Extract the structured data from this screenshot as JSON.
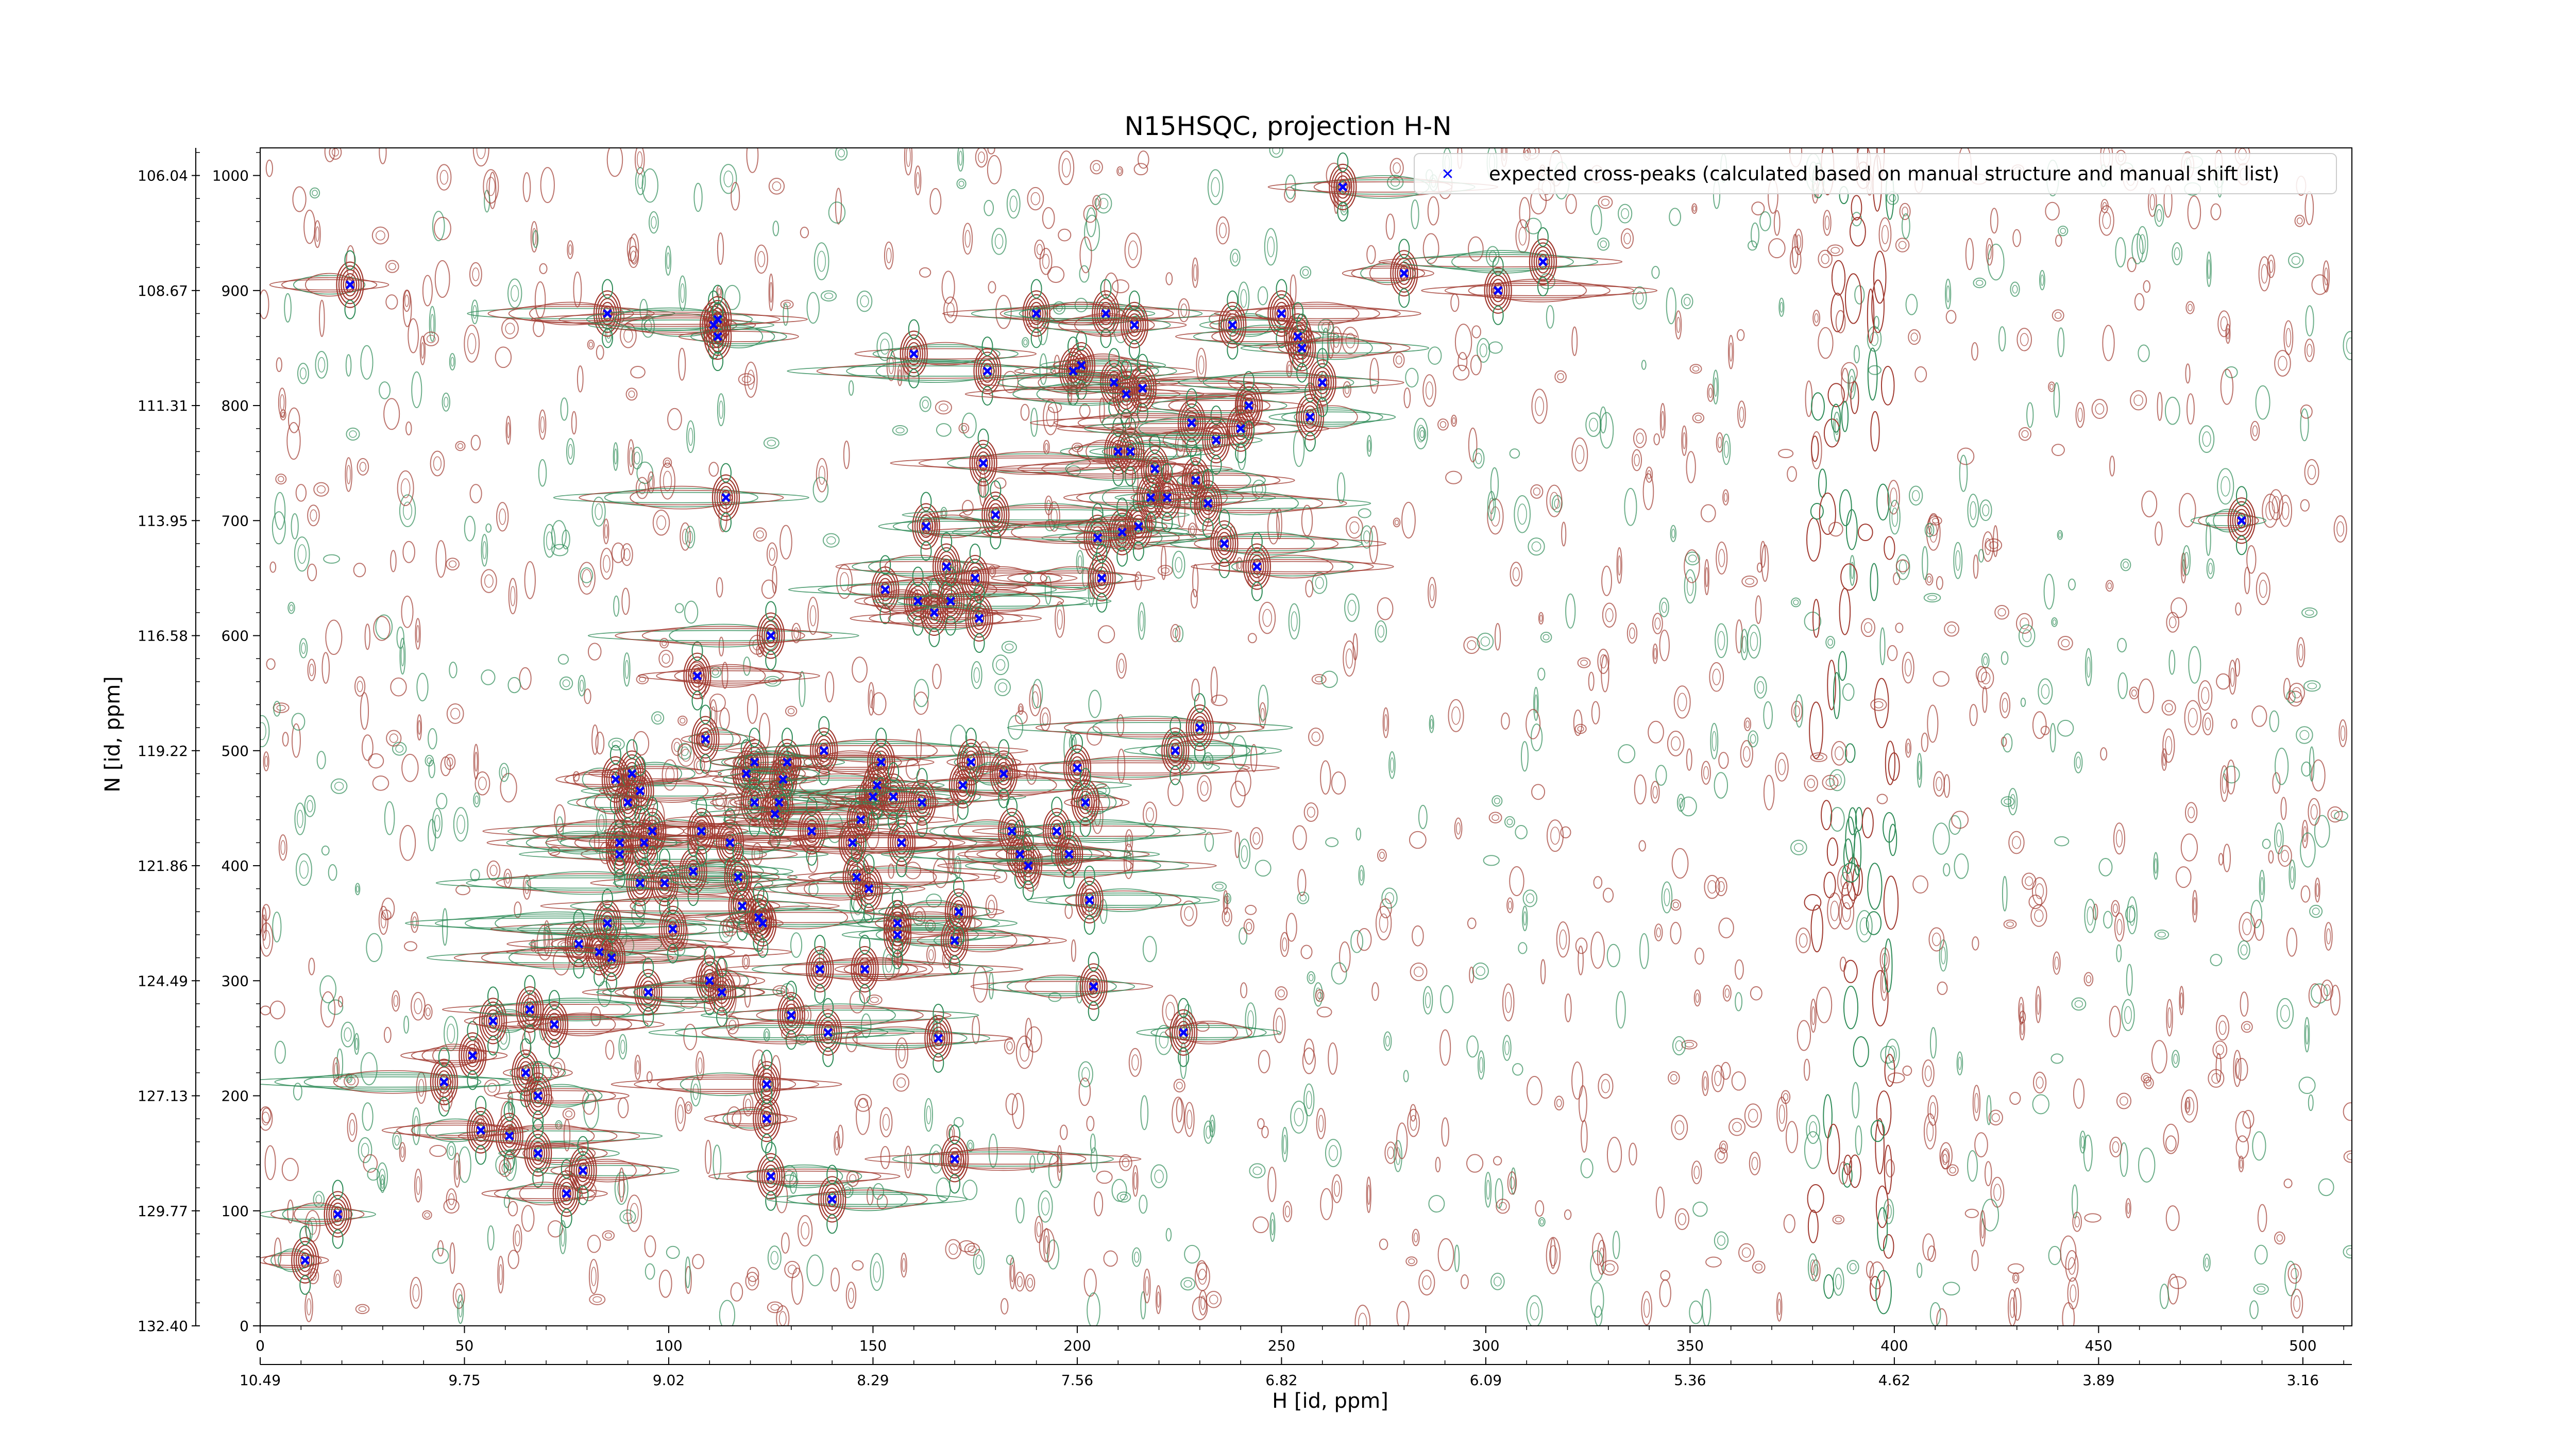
{
  "chart_data": {
    "type": "scatter",
    "title": "N15HSQC, projection H-N",
    "xlabel_bottom": "",
    "xlabel_top": "H [id, ppm]",
    "ylabel": "N [id, ppm]",
    "x_index_ticks": [
      "0",
      "50",
      "100",
      "150",
      "200",
      "250",
      "300",
      "350",
      "400",
      "450",
      "500"
    ],
    "x_ppm_ticks": [
      "10.49",
      "9.75",
      "9.02",
      "8.29",
      "7.56",
      "6.82",
      "6.09",
      "5.36",
      "4.62",
      "3.89",
      "3.16"
    ],
    "y_index_ticks": [
      "0",
      "100",
      "200",
      "300",
      "400",
      "500",
      "600",
      "700",
      "800",
      "900",
      "1000"
    ],
    "y_ppm_ticks": [
      "132.40",
      "129.77",
      "127.13",
      "124.49",
      "121.86",
      "119.22",
      "116.58",
      "113.95",
      "111.31",
      "108.67",
      "106.04"
    ],
    "xlim": [
      0,
      512
    ],
    "ylim": [
      0,
      1024
    ],
    "grid": false,
    "legend_position": "top-right",
    "contour_colors": {
      "positive": "#a0392f",
      "negative": "#2e8b57"
    },
    "series": [
      {
        "name": "expected cross-peaks (calculated based on manual structure and manual shift list)",
        "color": "#0000ff",
        "marker": "x",
        "points": [
          [
            11,
            57
          ],
          [
            19,
            97
          ],
          [
            22,
            905
          ],
          [
            52,
            235
          ],
          [
            45,
            212
          ],
          [
            54,
            170
          ],
          [
            57,
            265
          ],
          [
            61,
            165
          ],
          [
            65,
            220
          ],
          [
            66,
            275
          ],
          [
            68,
            200
          ],
          [
            68,
            150
          ],
          [
            72,
            262
          ],
          [
            75,
            115
          ],
          [
            78,
            332
          ],
          [
            79,
            135
          ],
          [
            83,
            325
          ],
          [
            85,
            880
          ],
          [
            85,
            350
          ],
          [
            86,
            320
          ],
          [
            87,
            475
          ],
          [
            88,
            410
          ],
          [
            88,
            420
          ],
          [
            90,
            455
          ],
          [
            91,
            480
          ],
          [
            93,
            465
          ],
          [
            93,
            385
          ],
          [
            94,
            420
          ],
          [
            95,
            290
          ],
          [
            96,
            430
          ],
          [
            99,
            385
          ],
          [
            101,
            345
          ],
          [
            106,
            395
          ],
          [
            107,
            565
          ],
          [
            108,
            430
          ],
          [
            109,
            510
          ],
          [
            110,
            300
          ],
          [
            111,
            870
          ],
          [
            112,
            875
          ],
          [
            112,
            860
          ],
          [
            113,
            290
          ],
          [
            114,
            720
          ],
          [
            115,
            420
          ],
          [
            117,
            390
          ],
          [
            118,
            365
          ],
          [
            119,
            480
          ],
          [
            121,
            490
          ],
          [
            121,
            455
          ],
          [
            122,
            355
          ],
          [
            123,
            350
          ],
          [
            124,
            210
          ],
          [
            124,
            180
          ],
          [
            125,
            130
          ],
          [
            125,
            600
          ],
          [
            126,
            445
          ],
          [
            127,
            455
          ],
          [
            128,
            475
          ],
          [
            129,
            490
          ],
          [
            130,
            270
          ],
          [
            135,
            430
          ],
          [
            137,
            310
          ],
          [
            138,
            500
          ],
          [
            139,
            255
          ],
          [
            140,
            110
          ],
          [
            145,
            420
          ],
          [
            146,
            390
          ],
          [
            147,
            440
          ],
          [
            148,
            310
          ],
          [
            149,
            380
          ],
          [
            150,
            460
          ],
          [
            151,
            470
          ],
          [
            152,
            490
          ],
          [
            153,
            640
          ],
          [
            155,
            460
          ],
          [
            156,
            340
          ],
          [
            156,
            350
          ],
          [
            157,
            420
          ],
          [
            160,
            845
          ],
          [
            161,
            630
          ],
          [
            162,
            455
          ],
          [
            163,
            695
          ],
          [
            165,
            620
          ],
          [
            166,
            250
          ],
          [
            168,
            660
          ],
          [
            169,
            630
          ],
          [
            170,
            335
          ],
          [
            170,
            145
          ],
          [
            171,
            360
          ],
          [
            172,
            470
          ],
          [
            174,
            490
          ],
          [
            175,
            650
          ],
          [
            176,
            615
          ],
          [
            177,
            750
          ],
          [
            178,
            830
          ],
          [
            180,
            705
          ],
          [
            182,
            480
          ],
          [
            184,
            430
          ],
          [
            186,
            410
          ],
          [
            188,
            400
          ],
          [
            190,
            880
          ],
          [
            195,
            430
          ],
          [
            198,
            410
          ],
          [
            199,
            830
          ],
          [
            200,
            485
          ],
          [
            201,
            835
          ],
          [
            202,
            455
          ],
          [
            203,
            370
          ],
          [
            204,
            295
          ],
          [
            205,
            685
          ],
          [
            206,
            650
          ],
          [
            207,
            880
          ],
          [
            209,
            820
          ],
          [
            210,
            760
          ],
          [
            211,
            690
          ],
          [
            212,
            810
          ],
          [
            213,
            760
          ],
          [
            214,
            870
          ],
          [
            215,
            695
          ],
          [
            216,
            815
          ],
          [
            218,
            720
          ],
          [
            219,
            745
          ],
          [
            222,
            720
          ],
          [
            224,
            500
          ],
          [
            226,
            255
          ],
          [
            228,
            785
          ],
          [
            229,
            735
          ],
          [
            230,
            520
          ],
          [
            232,
            715
          ],
          [
            234,
            770
          ],
          [
            236,
            680
          ],
          [
            238,
            870
          ],
          [
            240,
            780
          ],
          [
            242,
            800
          ],
          [
            244,
            660
          ],
          [
            250,
            880
          ],
          [
            254,
            860
          ],
          [
            255,
            850
          ],
          [
            257,
            790
          ],
          [
            260,
            820
          ],
          [
            265,
            990
          ],
          [
            280,
            915
          ],
          [
            303,
            900
          ],
          [
            314,
            925
          ],
          [
            485,
            700
          ]
        ]
      }
    ]
  }
}
